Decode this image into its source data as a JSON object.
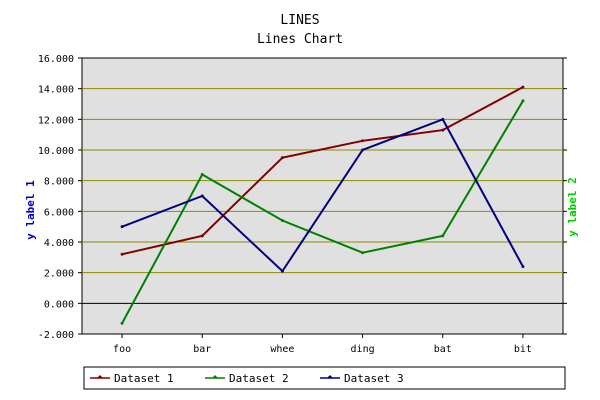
{
  "chart_data": {
    "type": "line",
    "title": "LINES",
    "subtitle": "Lines Chart",
    "xlabel": "",
    "ylabel": "y label 1",
    "y2label": "y label 2",
    "categories": [
      "foo",
      "bar",
      "whee",
      "ding",
      "bat",
      "bit"
    ],
    "ylim": [
      -2,
      16
    ],
    "yticks": [
      "-2.000",
      "0.000",
      "2.000",
      "4.000",
      "6.000",
      "8.000",
      "10.000",
      "12.000",
      "14.000",
      "16.000"
    ],
    "grid": true,
    "legend": "bottom",
    "colors": {
      "plot_background": "#e0e0e0",
      "grid": "#8b8b00",
      "zero_line": "#000000",
      "ylabel": "#0000cc",
      "y2label": "#00cc00"
    },
    "series": [
      {
        "name": "Dataset 1",
        "color": "#800000",
        "values": [
          3.2,
          4.4,
          9.5,
          10.6,
          11.3,
          14.1
        ]
      },
      {
        "name": "Dataset 2",
        "color": "#008000",
        "values": [
          -1.3,
          8.4,
          5.4,
          3.3,
          4.4,
          13.2
        ]
      },
      {
        "name": "Dataset 3",
        "color": "#000080",
        "values": [
          5.0,
          7.0,
          2.1,
          10.0,
          12.0,
          2.4
        ]
      }
    ]
  }
}
